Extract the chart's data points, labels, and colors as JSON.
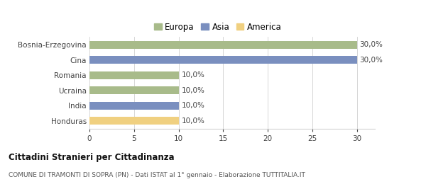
{
  "categories": [
    "Bosnia-Erzegovina",
    "Cina",
    "Romania",
    "Ucraina",
    "India",
    "Honduras"
  ],
  "values": [
    30.0,
    30.0,
    10.0,
    10.0,
    10.0,
    10.0
  ],
  "colors": [
    "#a8bb8a",
    "#7a8fbf",
    "#a8bb8a",
    "#a8bb8a",
    "#7a8fbf",
    "#f0d080"
  ],
  "legend_labels": [
    "Europa",
    "Asia",
    "America"
  ],
  "legend_colors": [
    "#a8bb8a",
    "#7a8fbf",
    "#f0d080"
  ],
  "xlim": [
    0,
    32
  ],
  "xticks": [
    0,
    5,
    10,
    15,
    20,
    25,
    30
  ],
  "title_bold": "Cittadini Stranieri per Cittadinanza",
  "subtitle": "COMUNE DI TRAMONTI DI SOPRA (PN) - Dati ISTAT al 1° gennaio - Elaborazione TUTTITALIA.IT",
  "bg_color": "#ffffff",
  "bar_height": 0.5,
  "grid_color": "#d0d0d0",
  "label_fontsize": 7.5,
  "tick_fontsize": 7.5,
  "legend_fontsize": 8.5
}
